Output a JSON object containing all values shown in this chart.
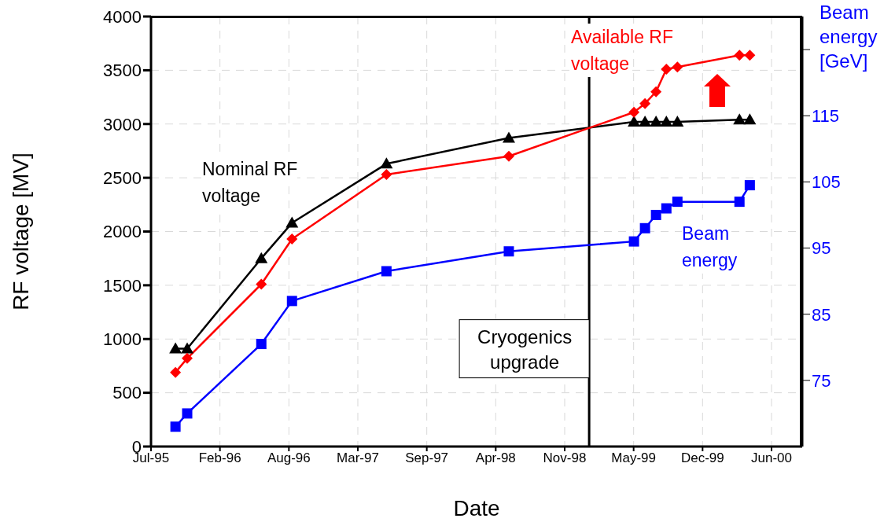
{
  "chart_data": {
    "type": "line",
    "xlabel": "Date",
    "ylabel": "RF voltage [MV]",
    "y2label": "Beam energy [GeV]",
    "x": [
      "1995-09-29",
      "1995-11-02",
      "1996-06-04",
      "1996-09-01",
      "1997-06-02",
      "1998-05-23",
      "1999-05-21",
      "1999-06-22",
      "1999-07-24",
      "1999-08-23",
      "1999-09-24",
      "2000-03-22",
      "2000-04-21"
    ],
    "series": [
      {
        "name": "Nominal RF voltage",
        "color": "#000000",
        "marker": "triangle",
        "values": [
          910,
          910,
          1750,
          2080,
          2630,
          2870,
          3020,
          3020,
          3020,
          3020,
          3020,
          3040,
          3040
        ]
      },
      {
        "name": "Available RF voltage",
        "color": "#ff0000",
        "marker": "diamond",
        "values": [
          690,
          820,
          1510,
          1930,
          2530,
          2700,
          3110,
          3190,
          3300,
          3510,
          3530,
          3640,
          3640
        ]
      },
      {
        "name": "Beam energy",
        "color": "#0000ff",
        "marker": "square",
        "axis": "y2",
        "values": [
          68,
          70,
          80.5,
          87,
          91.5,
          94.5,
          96,
          98,
          100,
          101,
          102,
          102,
          104.5
        ]
      }
    ],
    "xlim": [
      "1995-07-20",
      "2000-09-20"
    ],
    "xticks": [
      {
        "value": "1995-07-20",
        "label": "Jul-95"
      },
      {
        "value": "1996-02-05",
        "label": "Feb-96"
      },
      {
        "value": "1996-08-23",
        "label": "Aug-96"
      },
      {
        "value": "1997-03-11",
        "label": "Mar-97"
      },
      {
        "value": "1997-09-27",
        "label": "Sep-97"
      },
      {
        "value": "1998-04-15",
        "label": "Apr-98"
      },
      {
        "value": "1998-11-01",
        "label": "Nov-98"
      },
      {
        "value": "1999-05-20",
        "label": "May-99"
      },
      {
        "value": "1999-12-06",
        "label": "Dec-99"
      },
      {
        "value": "2000-06-23",
        "label": "Jun-00"
      }
    ],
    "ylim": [
      0,
      4000
    ],
    "yticks": [
      0,
      500,
      1000,
      1500,
      2000,
      2500,
      3000,
      3500,
      4000
    ],
    "y2lim": [
      65,
      130
    ],
    "y2ticks": [
      75,
      85,
      95,
      105,
      115,
      {
        "value": 125,
        "label": null
      }
    ],
    "ref_lines": [
      {
        "axis": "x",
        "value": "1999-01-11",
        "label": "Cryogenics upgrade",
        "color": "#000000"
      }
    ],
    "grid": true,
    "line_style": "solid"
  }
}
